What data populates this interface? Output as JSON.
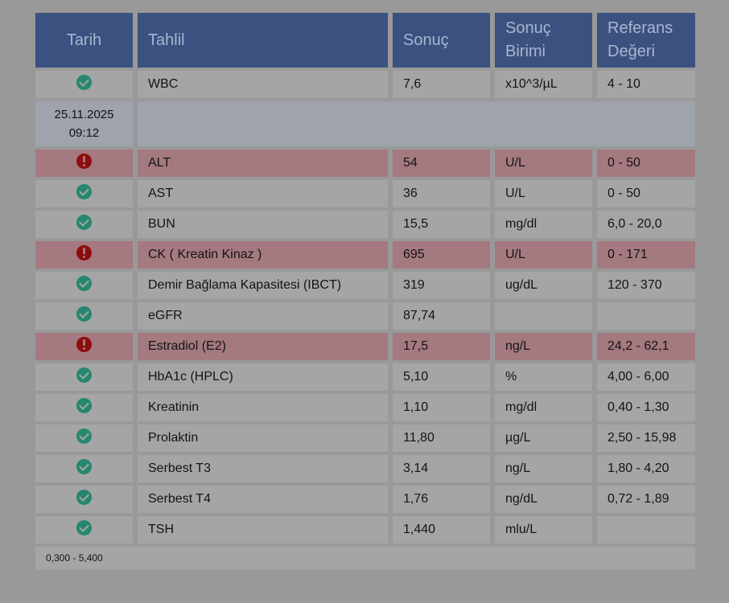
{
  "table": {
    "headers": {
      "date": "Tarih",
      "test": "Tahlil",
      "result": "Sonuç",
      "unit": "Sonuç Birimi",
      "reference": "Referans Değeri"
    },
    "first_row": {
      "status": "ok",
      "test": "WBC",
      "result": "7,6",
      "unit": "x10^3/µL",
      "reference": "4 - 10"
    },
    "group": {
      "date": "25.11.2025",
      "time": "09:12"
    },
    "rows": [
      {
        "status": "alert",
        "test": "ALT",
        "result": "54",
        "unit": "U/L",
        "reference": "0 - 50"
      },
      {
        "status": "ok",
        "test": "AST",
        "result": "36",
        "unit": "U/L",
        "reference": "0 - 50"
      },
      {
        "status": "ok",
        "test": "BUN",
        "result": "15,5",
        "unit": "mg/dl",
        "reference": "6,0 - 20,0"
      },
      {
        "status": "alert",
        "test": "CK ( Kreatin Kinaz )",
        "result": "695",
        "unit": "U/L",
        "reference": "0 - 171"
      },
      {
        "status": "ok",
        "test": "Demir Bağlama Kapasitesi (IBCT)",
        "result": "319",
        "unit": "ug/dL",
        "reference": "120 - 370"
      },
      {
        "status": "ok",
        "test": "eGFR",
        "result": "87,74",
        "unit": "",
        "reference": ""
      },
      {
        "status": "alert",
        "test": "Estradiol (E2)",
        "result": "17,5",
        "unit": "ng/L",
        "reference": "24,2 - 62,1"
      },
      {
        "status": "ok",
        "test": "HbA1c (HPLC)",
        "result": "5,10",
        "unit": "%",
        "reference": "4,00 - 6,00"
      },
      {
        "status": "ok",
        "test": "Kreatinin",
        "result": "1,10",
        "unit": "mg/dl",
        "reference": "0,40 - 1,30"
      },
      {
        "status": "ok",
        "test": "Prolaktin",
        "result": "11,80",
        "unit": "µg/L",
        "reference": "2,50 - 15,98"
      },
      {
        "status": "ok",
        "test": "Serbest T3",
        "result": "3,14",
        "unit": "ng/L",
        "reference": "1,80 - 4,20"
      },
      {
        "status": "ok",
        "test": "Serbest T4",
        "result": "1,76",
        "unit": "ng/dL",
        "reference": "0,72 - 1,89"
      },
      {
        "status": "ok",
        "test": "TSH",
        "result": "1,440",
        "unit": "mlu/L",
        "reference": ""
      }
    ],
    "note": "0,300 - 5,400"
  },
  "icons": {
    "ok": "check-circle-icon",
    "alert": "exclamation-circle-icon"
  },
  "colors": {
    "header_bg": "#3b5180",
    "header_text": "#a9b6cf",
    "row_bg": "#a5a5a5",
    "alert_row_bg": "#a4797f",
    "group_row_bg": "#9ea3ac",
    "ok_icon": "#25876f",
    "alert_icon": "#8c0d0d",
    "overlay_bg": "#999999"
  }
}
